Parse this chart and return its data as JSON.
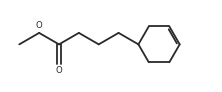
{
  "bg_color": "#ffffff",
  "line_color": "#2a2a2a",
  "line_width": 1.3,
  "figsize": [
    2.22,
    0.92
  ],
  "dpi": 100,
  "xlim": [
    0,
    10
  ],
  "ylim": [
    0,
    4.15
  ]
}
